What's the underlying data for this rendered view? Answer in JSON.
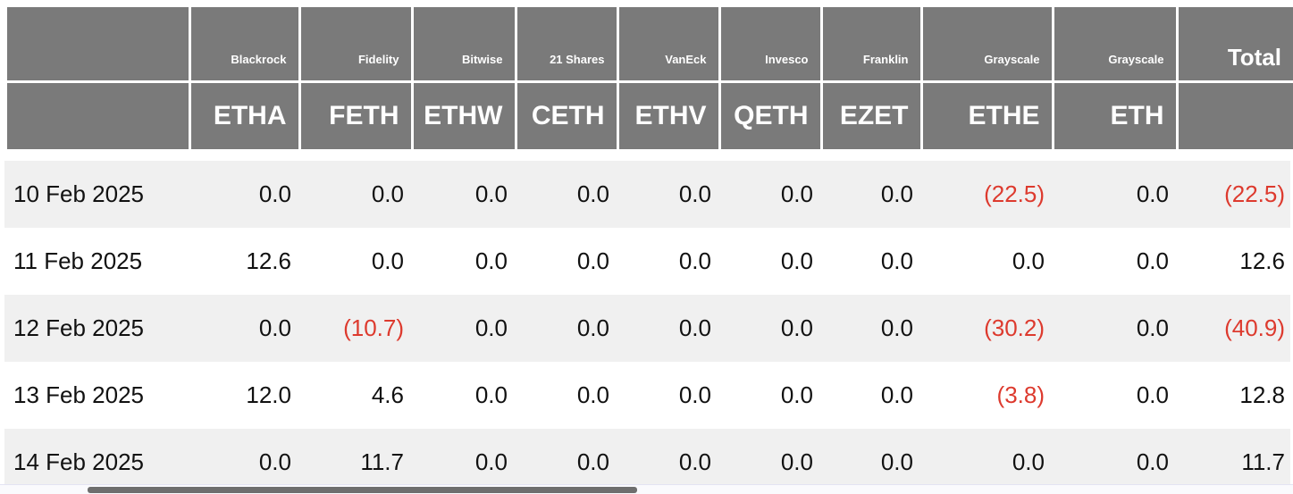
{
  "colors": {
    "header_bg": "#7a7a7a",
    "header_text": "#ffffff",
    "row_bg": "#ffffff",
    "row_alt_bg": "#f0f0f0",
    "value_text": "#111111",
    "negative_text": "#dd3a2e",
    "scrollbar_track": "#fafafd",
    "scrollbar_thumb": "#6e6e6e"
  },
  "header": {
    "columns": [
      {
        "provider": "Blackrock",
        "ticker": "ETHA"
      },
      {
        "provider": "Fidelity",
        "ticker": "FETH"
      },
      {
        "provider": "Bitwise",
        "ticker": "ETHW"
      },
      {
        "provider": "21 Shares",
        "ticker": "CETH"
      },
      {
        "provider": "VanEck",
        "ticker": "ETHV"
      },
      {
        "provider": "Invesco",
        "ticker": "QETH"
      },
      {
        "provider": "Franklin",
        "ticker": "EZET"
      },
      {
        "provider": "Grayscale",
        "ticker": "ETHE"
      },
      {
        "provider": "Grayscale",
        "ticker": "ETH"
      }
    ],
    "total_label": "Total"
  },
  "rows": [
    {
      "date": "10 Feb 2025",
      "cells": [
        "0.0",
        "0.0",
        "0.0",
        "0.0",
        "0.0",
        "0.0",
        "0.0",
        "(22.5)",
        "0.0"
      ],
      "total": "(22.5)"
    },
    {
      "date": "11 Feb 2025",
      "cells": [
        "12.6",
        "0.0",
        "0.0",
        "0.0",
        "0.0",
        "0.0",
        "0.0",
        "0.0",
        "0.0"
      ],
      "total": "12.6"
    },
    {
      "date": "12 Feb 2025",
      "cells": [
        "0.0",
        "(10.7)",
        "0.0",
        "0.0",
        "0.0",
        "0.0",
        "0.0",
        "(30.2)",
        "0.0"
      ],
      "total": "(40.9)"
    },
    {
      "date": "13 Feb 2025",
      "cells": [
        "12.0",
        "4.6",
        "0.0",
        "0.0",
        "0.0",
        "0.0",
        "0.0",
        "(3.8)",
        "0.0"
      ],
      "total": "12.8"
    },
    {
      "date": "14 Feb 2025",
      "cells": [
        "0.0",
        "11.7",
        "0.0",
        "0.0",
        "0.0",
        "0.0",
        "0.0",
        "0.0",
        "0.0"
      ],
      "total": "11.7"
    }
  ],
  "chart_data": {
    "type": "table",
    "categories": [
      "10 Feb 2025",
      "11 Feb 2025",
      "12 Feb 2025",
      "13 Feb 2025",
      "14 Feb 2025"
    ],
    "series": [
      {
        "name": "Blackrock ETHA",
        "values": [
          0.0,
          12.6,
          0.0,
          12.0,
          0.0
        ]
      },
      {
        "name": "Fidelity FETH",
        "values": [
          0.0,
          0.0,
          -10.7,
          4.6,
          11.7
        ]
      },
      {
        "name": "Bitwise ETHW",
        "values": [
          0.0,
          0.0,
          0.0,
          0.0,
          0.0
        ]
      },
      {
        "name": "21 Shares CETH",
        "values": [
          0.0,
          0.0,
          0.0,
          0.0,
          0.0
        ]
      },
      {
        "name": "VanEck ETHV",
        "values": [
          0.0,
          0.0,
          0.0,
          0.0,
          0.0
        ]
      },
      {
        "name": "Invesco QETH",
        "values": [
          0.0,
          0.0,
          0.0,
          0.0,
          0.0
        ]
      },
      {
        "name": "Franklin EZET",
        "values": [
          0.0,
          0.0,
          0.0,
          0.0,
          0.0
        ]
      },
      {
        "name": "Grayscale ETHE",
        "values": [
          -22.5,
          0.0,
          -30.2,
          -3.8,
          0.0
        ]
      },
      {
        "name": "Grayscale ETH",
        "values": [
          0.0,
          0.0,
          0.0,
          0.0,
          0.0
        ]
      },
      {
        "name": "Total",
        "values": [
          -22.5,
          12.6,
          -40.9,
          12.8,
          11.7
        ]
      }
    ],
    "notes": "Negative values displayed in red within parentheses"
  }
}
